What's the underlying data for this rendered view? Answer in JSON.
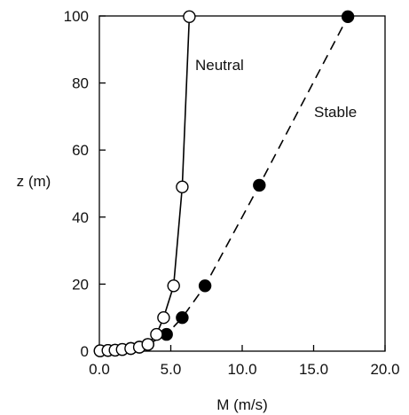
{
  "chart_data": {
    "type": "line",
    "title": "",
    "xlabel": "M (m/s)",
    "ylabel": "z (m)",
    "xlim": [
      0,
      20
    ],
    "ylim": [
      0,
      100
    ],
    "xticks": [
      "0.0",
      "5.0",
      "10.0",
      "15.0",
      "20.0"
    ],
    "yticks": [
      "0",
      "20",
      "40",
      "60",
      "80",
      "100"
    ],
    "grid": false,
    "legend": "none",
    "series": [
      {
        "name": "Neutral",
        "line_style": "solid",
        "marker": "open-circle",
        "color": "#000000",
        "points": [
          {
            "x": 0.05,
            "z": 0.1
          },
          {
            "x": 0.6,
            "z": 0.2
          },
          {
            "x": 1.1,
            "z": 0.3
          },
          {
            "x": 1.6,
            "z": 0.5
          },
          {
            "x": 2.2,
            "z": 0.8
          },
          {
            "x": 2.8,
            "z": 1.2
          },
          {
            "x": 3.4,
            "z": 2.0
          },
          {
            "x": 4.0,
            "z": 5.0
          },
          {
            "x": 4.5,
            "z": 10.0
          },
          {
            "x": 5.2,
            "z": 19.5
          },
          {
            "x": 5.8,
            "z": 49.0
          },
          {
            "x": 6.3,
            "z": 99.8
          }
        ]
      },
      {
        "name": "Stable",
        "line_style": "dashed",
        "marker": "filled-circle",
        "color": "#000000",
        "points": [
          {
            "x": 0.05,
            "z": 0.1
          },
          {
            "x": 0.6,
            "z": 0.2
          },
          {
            "x": 1.1,
            "z": 0.3
          },
          {
            "x": 1.6,
            "z": 0.5
          },
          {
            "x": 2.2,
            "z": 0.8
          },
          {
            "x": 2.8,
            "z": 1.2
          },
          {
            "x": 3.4,
            "z": 2.0
          },
          {
            "x": 4.7,
            "z": 5.0
          },
          {
            "x": 5.8,
            "z": 10.0
          },
          {
            "x": 7.4,
            "z": 19.5
          },
          {
            "x": 11.2,
            "z": 49.5
          },
          {
            "x": 17.4,
            "z": 99.8
          }
        ]
      }
    ]
  }
}
